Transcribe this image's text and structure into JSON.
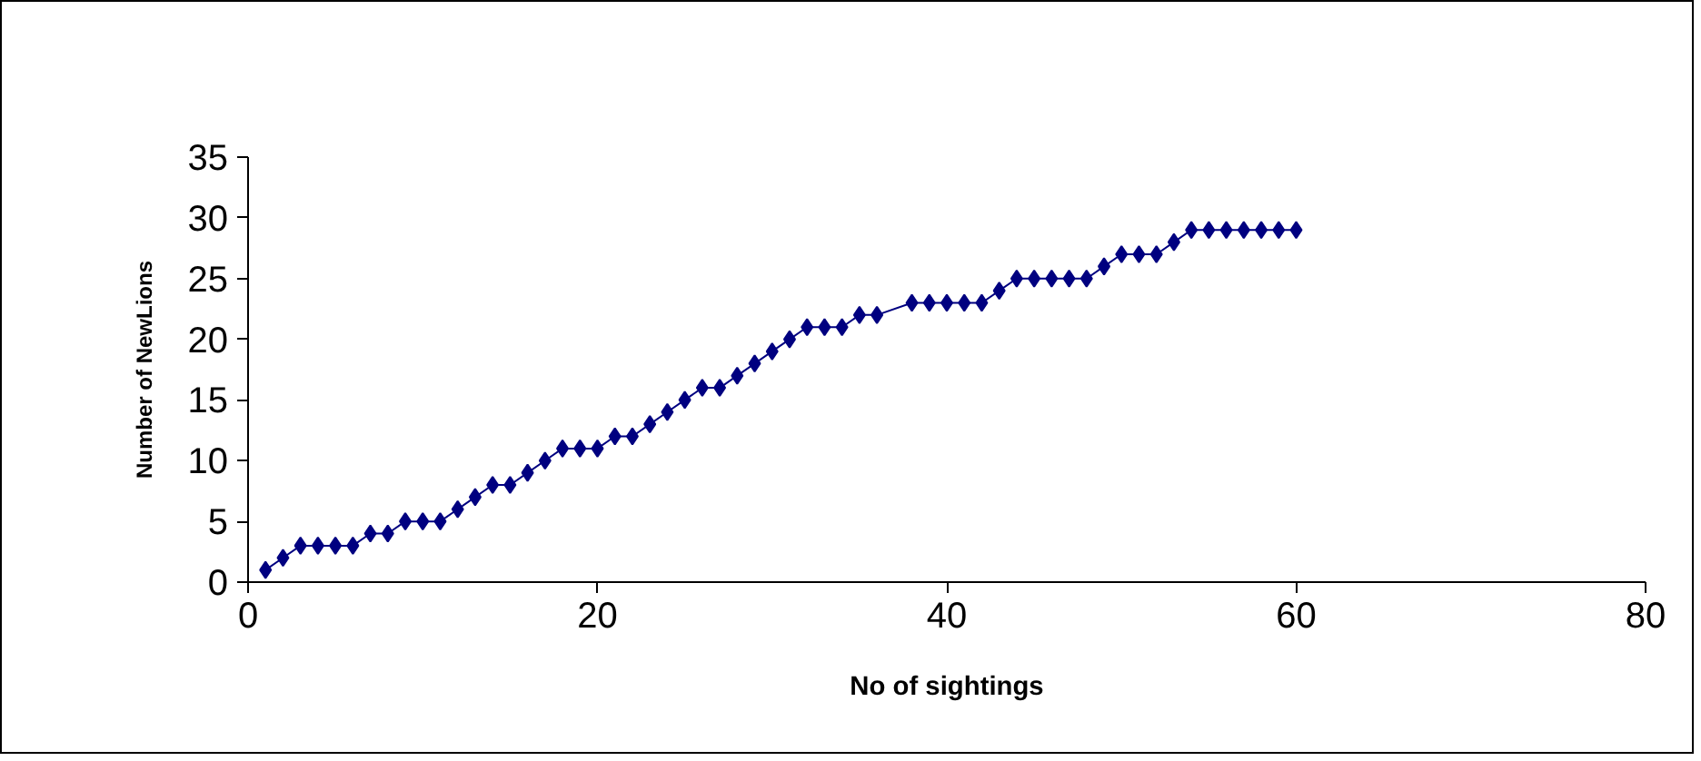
{
  "chart_data": {
    "type": "line",
    "xlabel": "No of sightings",
    "ylabel": "Number of NewLions",
    "x": [
      1,
      2,
      3,
      4,
      5,
      6,
      7,
      8,
      9,
      10,
      11,
      12,
      13,
      14,
      15,
      16,
      17,
      18,
      19,
      20,
      21,
      22,
      23,
      24,
      25,
      26,
      27,
      28,
      29,
      30,
      31,
      32,
      33,
      34,
      35,
      36,
      38,
      39,
      40,
      41,
      42,
      43,
      44,
      45,
      46,
      47,
      48,
      49,
      50,
      51,
      52,
      53,
      54,
      55,
      56,
      57,
      58,
      59,
      60
    ],
    "series": [
      {
        "color": "#000080",
        "values": [
          1,
          2,
          3,
          3,
          3,
          3,
          4,
          4,
          5,
          5,
          5,
          6,
          7,
          8,
          8,
          9,
          10,
          11,
          11,
          11,
          12,
          12,
          13,
          14,
          15,
          16,
          16,
          17,
          18,
          19,
          20,
          21,
          21,
          21,
          22,
          22,
          23,
          23,
          23,
          23,
          23,
          24,
          25,
          25,
          25,
          25,
          25,
          26,
          27,
          27,
          27,
          28,
          29,
          29,
          29,
          29,
          29,
          29,
          29
        ]
      }
    ],
    "xlim": [
      0,
      80
    ],
    "xticks": [
      0,
      20,
      40,
      60,
      80
    ],
    "ylim": [
      0,
      35
    ],
    "yticks": [
      0,
      5,
      10,
      15,
      20,
      25,
      30,
      35
    ],
    "grid": false,
    "marker": "diamond",
    "line_style": "solid"
  }
}
